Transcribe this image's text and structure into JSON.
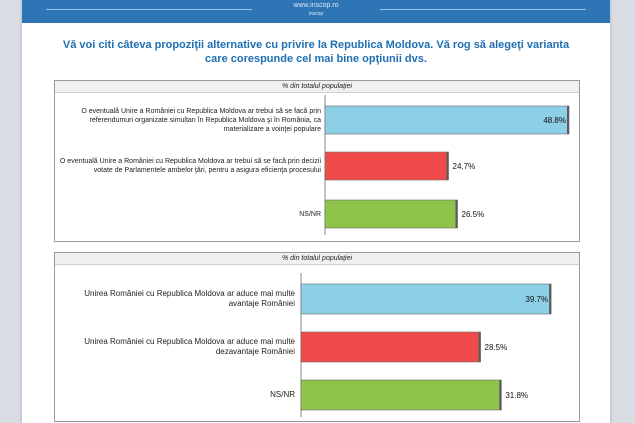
{
  "header": {
    "url": "www.inscop.ro",
    "sub": "inscop"
  },
  "title": "Vă voi citi câteva propoziţii alternative cu privire la Republica Moldova. Vă rog să alegeţi varianta care corespunde cel mai bine opţiunii dvs.",
  "colors": {
    "blue": "#8ccfe6",
    "red": "#f04b4b",
    "green": "#8ec44a",
    "header": "#2e75b6",
    "title": "#1f6fb2"
  },
  "chart_data": [
    {
      "type": "bar",
      "orientation": "horizontal",
      "title": "% din totalul populaţiei",
      "categories": [
        "O eventuală Unire a României cu Republica Moldova ar trebui să se facă prin referendumuri organizate simultan în Republica Moldova şi în România, ca materializare a voinţei populare",
        "O eventuală Unire a României cu Republica Moldova ar trebui să se facă prin decizii votate de Parlamentele ambelor ţări, pentru a asigura eficienţa procesului",
        "NS/NR"
      ],
      "values": [
        48.8,
        24.7,
        26.5
      ],
      "labels": [
        "48.8%",
        "24.7%",
        "26.5%"
      ],
      "xlim": [
        0,
        50
      ]
    },
    {
      "type": "bar",
      "orientation": "horizontal",
      "title": "% din totalul populaţiei",
      "categories": [
        "Unirea României cu Republica Moldova ar aduce mai multe avantaje României",
        "Unirea României cu Republica Moldova ar aduce mai multe dezavantaje României",
        "NS/NR"
      ],
      "values": [
        39.7,
        28.5,
        31.8
      ],
      "labels": [
        "39.7%",
        "28.5%",
        "31.8%"
      ],
      "xlim": [
        0,
        40
      ]
    }
  ]
}
